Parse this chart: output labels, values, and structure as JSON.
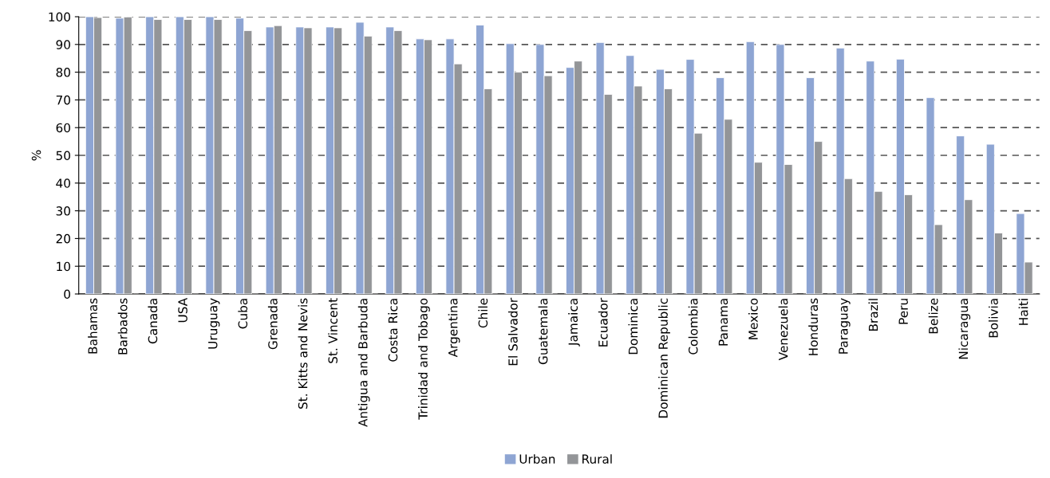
{
  "chart_data": {
    "type": "bar",
    "ylabel": "%",
    "categories": [
      "Bahamas",
      "Barbados",
      "Canada",
      "USA",
      "Uruguay",
      "Cuba",
      "Grenada",
      "St. Kitts and Nevis",
      "St. Vincent",
      "Antigua and Barbuda",
      "Costa Rica",
      "Trinidad and Tobago",
      "Argentina",
      "Chile",
      "El Salvador",
      "Guatemala",
      "Jamaica",
      "Ecuador",
      "Dominica",
      "Dominican Republic",
      "Colombia",
      "Panama",
      "Mexico",
      "Venezuela",
      "Honduras",
      "Paraguay",
      "Brazil",
      "Peru",
      "Belize",
      "Nicaragua",
      "Bolivia",
      "Haiti"
    ],
    "series": [
      {
        "name": "Urban",
        "color": "#8ea5d3",
        "values": [
          100,
          99.5,
          100,
          100,
          100,
          99.5,
          96.3,
          96.3,
          96.3,
          98,
          96.3,
          92,
          92,
          97,
          90.3,
          90,
          81.7,
          90.7,
          86,
          81,
          84.6,
          78,
          91,
          90,
          78,
          88.7,
          84,
          84.7,
          70.8,
          57,
          54,
          29
        ]
      },
      {
        "name": "Rural",
        "color": "#939598",
        "values": [
          99.7,
          99.9,
          99,
          99,
          99,
          95,
          96.8,
          96,
          96,
          93,
          95,
          91.7,
          83,
          74,
          80,
          78.7,
          84,
          72,
          75,
          74,
          58,
          63,
          47.5,
          46.7,
          55,
          41.6,
          37,
          35.8,
          25,
          34,
          22,
          11.5
        ]
      }
    ],
    "ylim": [
      0,
      100
    ],
    "yticks": [
      0,
      10,
      20,
      30,
      40,
      50,
      60,
      70,
      80,
      90,
      100
    ],
    "grid": "y",
    "legend": "bottom"
  }
}
